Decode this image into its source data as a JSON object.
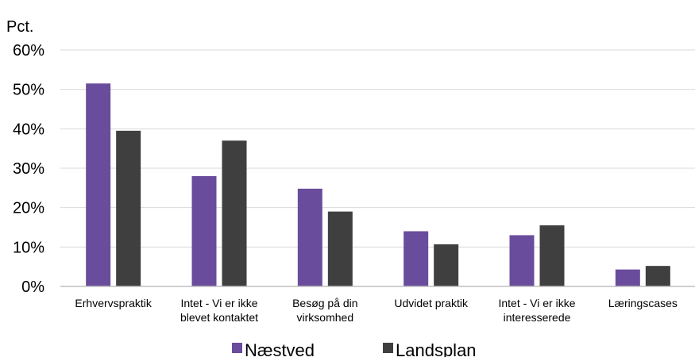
{
  "chart_data": {
    "type": "bar",
    "unit_label": "Pct.",
    "categories": [
      [
        "Erhvervspraktik"
      ],
      [
        "Intet - Vi er ikke",
        "blevet kontaktet"
      ],
      [
        "Besøg på din",
        "virksomhed"
      ],
      [
        "Udvidet praktik"
      ],
      [
        "Intet - Vi er ikke",
        "interesserede"
      ],
      [
        "Læringscases"
      ]
    ],
    "series": [
      {
        "name": "Næstved",
        "color": "#6a4c9c",
        "values": [
          51.5,
          28,
          24.8,
          14,
          13,
          4.3
        ]
      },
      {
        "name": "Landsplan",
        "color": "#3f3f3f",
        "values": [
          39.5,
          37,
          19,
          10.7,
          15.5,
          5.2
        ]
      }
    ],
    "y_ticks": [
      "0%",
      "10%",
      "20%",
      "30%",
      "40%",
      "50%",
      "60%"
    ],
    "ylim": [
      0,
      60
    ],
    "grid": true,
    "legend_position": "bottom"
  }
}
